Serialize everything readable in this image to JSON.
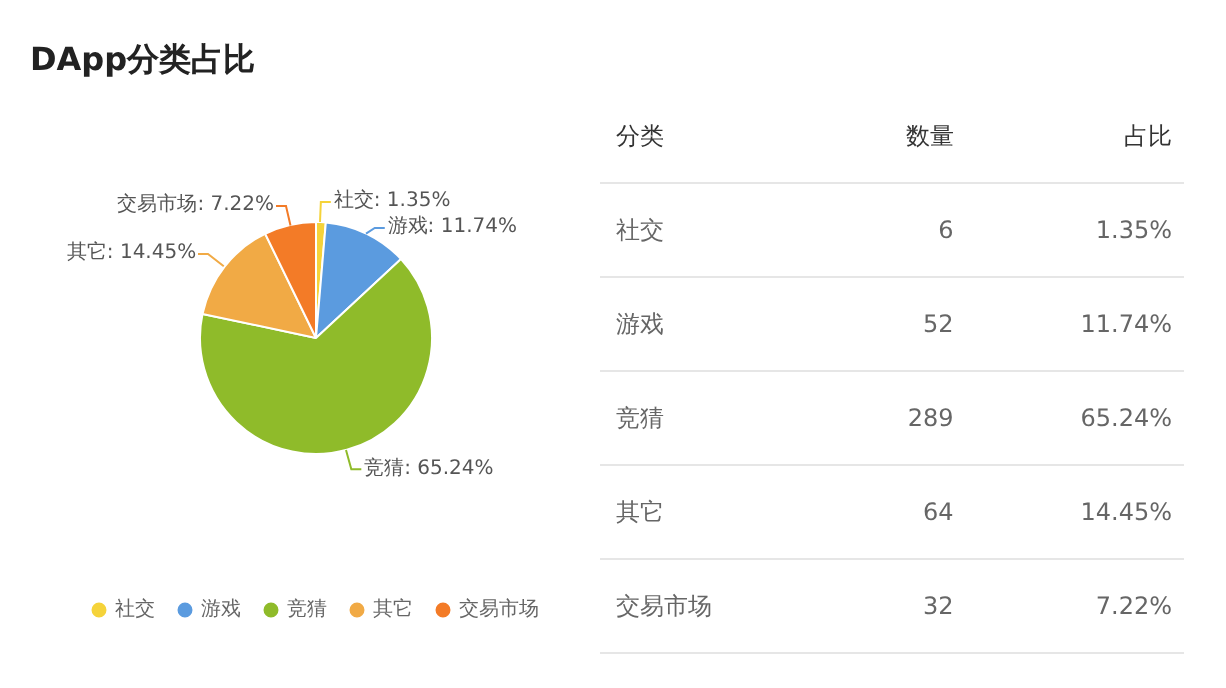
{
  "chart_data": [
    {
      "type": "pie",
      "title": "DApp分类占比",
      "categories": [
        "社交",
        "游戏",
        "竞猜",
        "其它",
        "交易市场"
      ],
      "values": [
        1.35,
        11.74,
        65.24,
        14.45,
        7.22
      ],
      "value_labels": [
        "社交: 1.35%",
        "游戏: 11.74%",
        "竞猜: 65.24%",
        "其它: 14.45%",
        "交易市场: 7.22%"
      ],
      "colors": [
        "#f5d33a",
        "#5b9bdf",
        "#8fbb2a",
        "#f1aa45",
        "#f37b27"
      ],
      "legend": "bottom"
    },
    {
      "type": "other",
      "data_labels": true,
      "annotations": [
        "分类"
      ],
      "categories": [
        "社交",
        "游戏",
        "竞猜",
        "其它",
        "交易市场"
      ],
      "series": [
        {
          "name": "数量",
          "values": [
            6,
            52,
            289,
            64,
            32
          ]
        },
        {
          "name": "占比",
          "values": [
            1.35,
            11.74,
            65.24,
            14.45,
            7.22
          ],
          "value_labels": [
            "1.35%",
            "11.74%",
            "65.24%",
            "14.45%",
            "7.22%"
          ]
        }
      ]
    }
  ]
}
